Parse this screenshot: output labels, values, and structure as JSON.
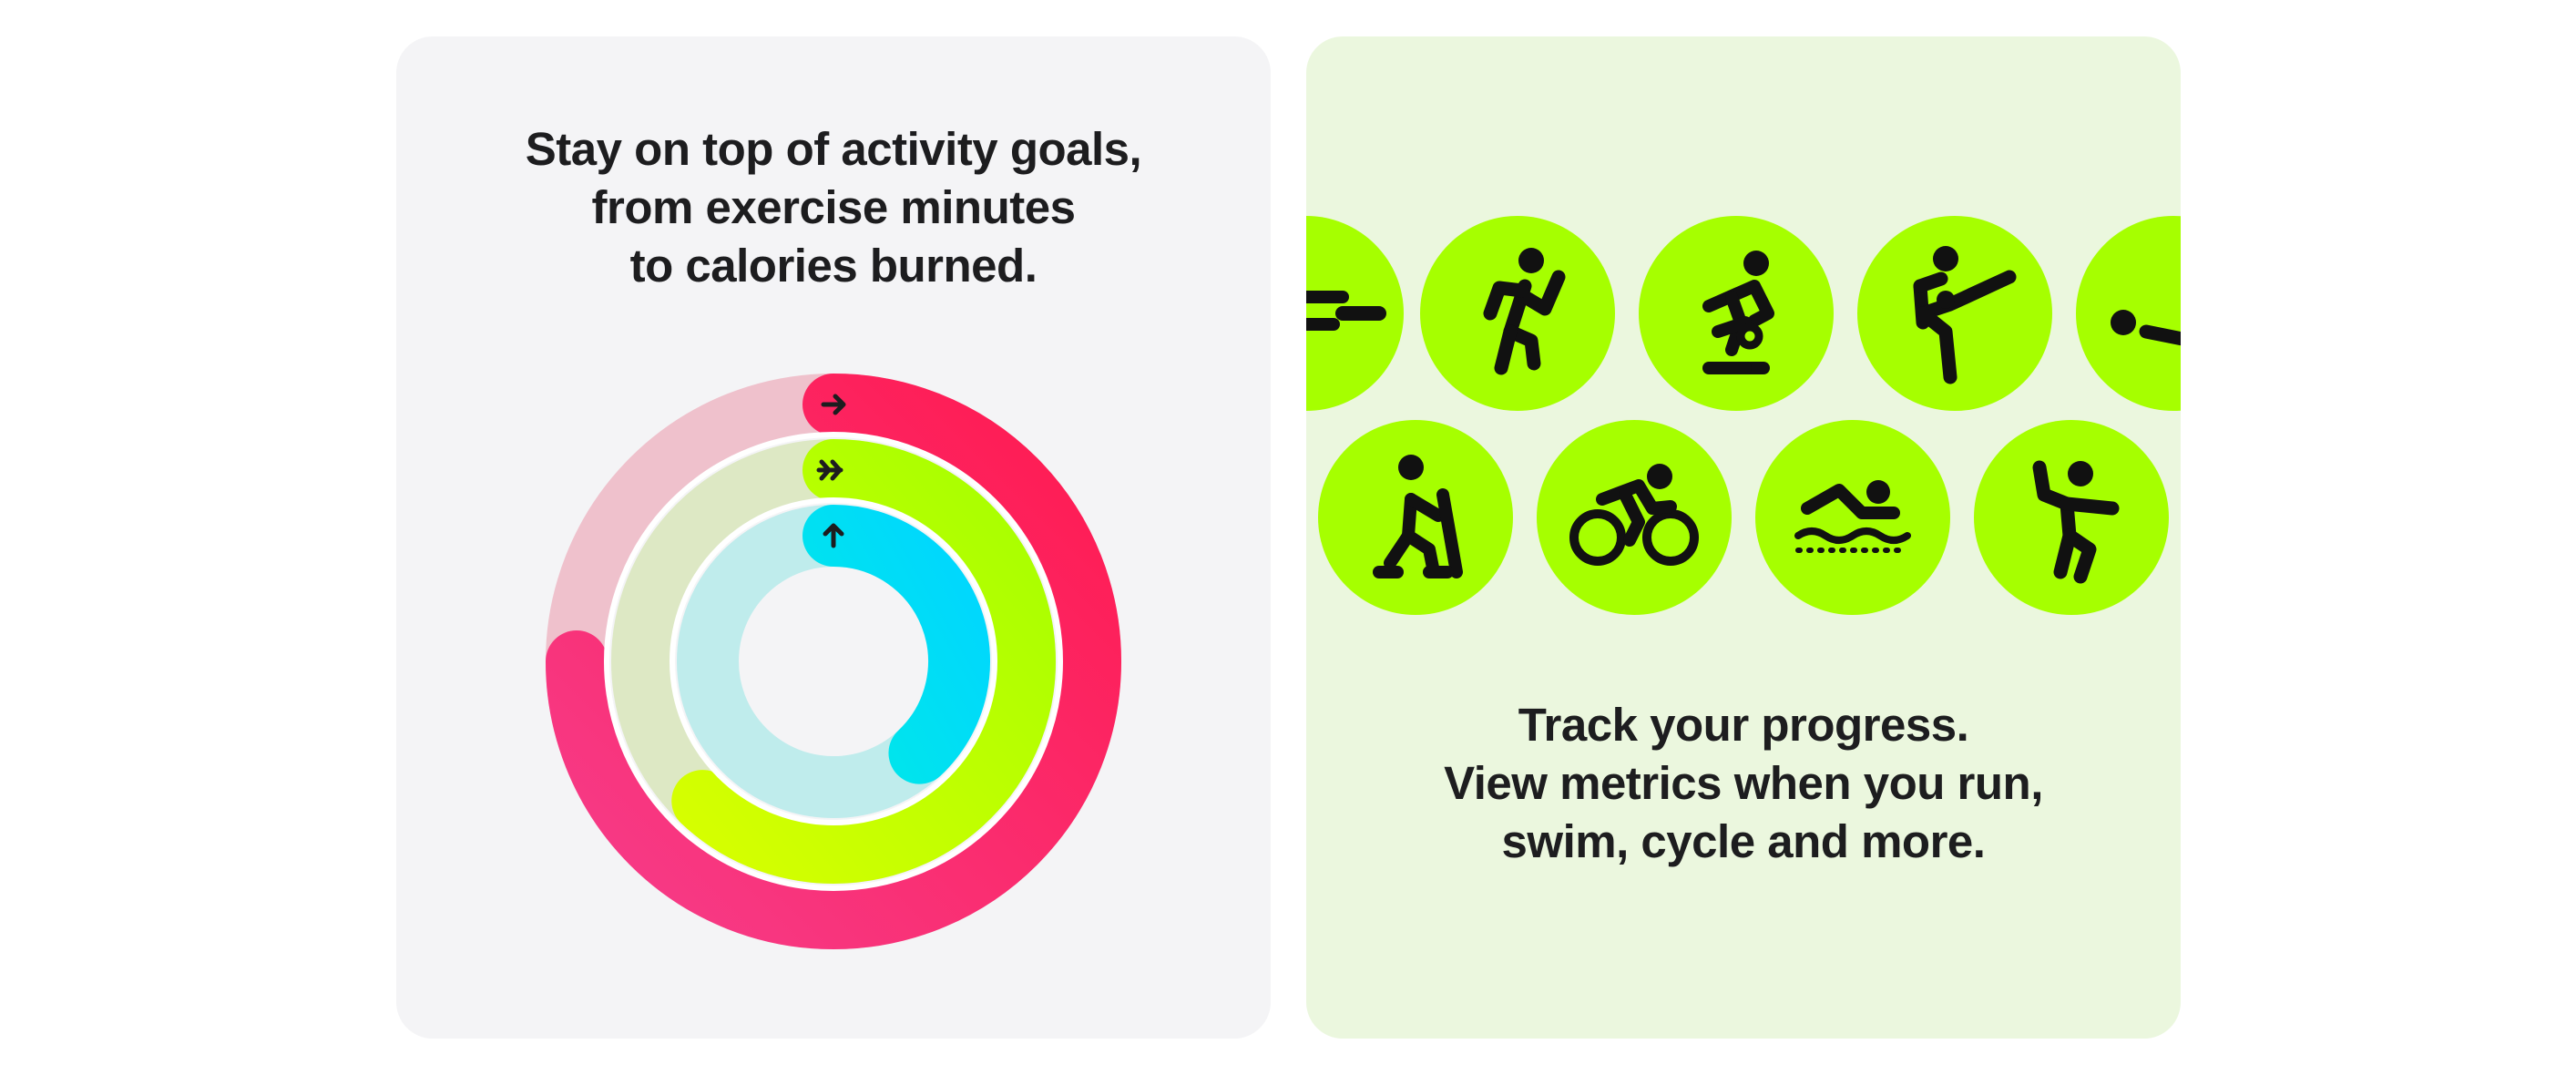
{
  "left_card": {
    "headline_lines": [
      "Stay on top of activity goals,",
      "from exercise minutes",
      "to calories burned."
    ],
    "rings": [
      {
        "name": "move",
        "progress": 0.75,
        "colors": {
          "track": "#efc1cc",
          "start": "#f63c8a",
          "end": "#ff1a50"
        },
        "glyph": "arrow-right-icon"
      },
      {
        "name": "exercise",
        "progress": 0.62,
        "colors": {
          "track": "#dde8c4",
          "start": "#d6ff00",
          "end": "#a6ff00"
        },
        "glyph": "double-arrow-right-icon"
      },
      {
        "name": "stand",
        "progress": 0.38,
        "colors": {
          "track": "#bfecec",
          "start": "#00e8e8",
          "end": "#00d6ff"
        },
        "glyph": "arrow-up-icon"
      }
    ]
  },
  "right_card": {
    "headline_lines": [
      "Track your progress.",
      "View metrics when you run,",
      "swim, cycle and more."
    ],
    "badge_color": "#a6ff00",
    "icon_rows": [
      [
        "rowing-icon",
        "running-icon",
        "indoor-cycling-icon",
        "kickboxing-icon",
        "core-training-icon"
      ],
      [
        "elliptical-icon",
        "outdoor-cycling-icon",
        "swimming-icon",
        "dance-icon"
      ]
    ]
  }
}
